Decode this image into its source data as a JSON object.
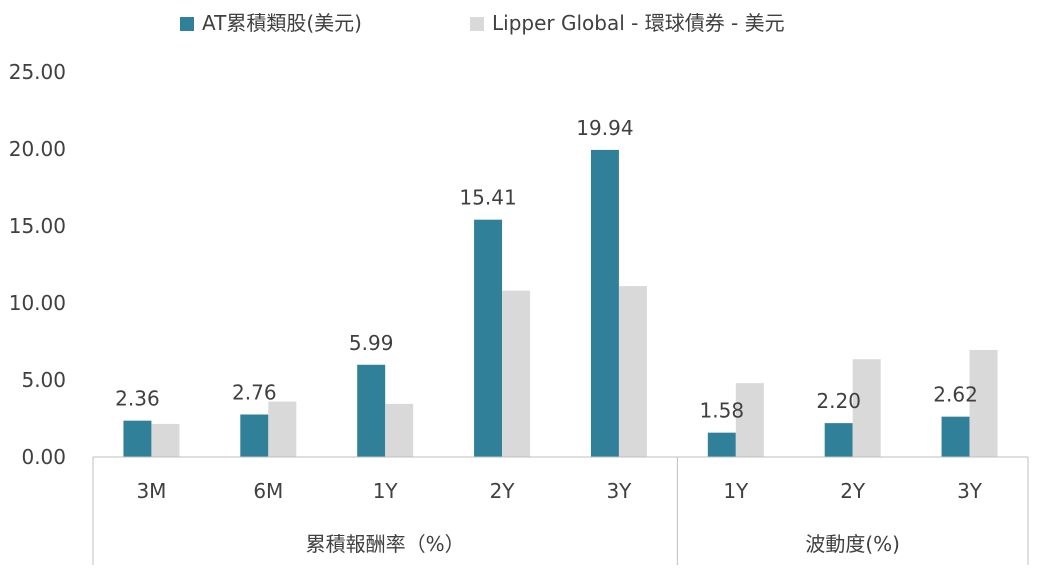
{
  "chart_data": {
    "type": "bar",
    "legend_position": "top",
    "grid": false,
    "ylim": [
      0,
      25
    ],
    "y_ticks": [
      "0.00",
      "5.00",
      "10.00",
      "15.00",
      "20.00",
      "25.00"
    ],
    "categories": [
      "3M",
      "6M",
      "1Y",
      "2Y",
      "3Y",
      "1Y",
      "2Y",
      "3Y"
    ],
    "groups": [
      {
        "label": "累積報酬率（%）",
        "count": 5
      },
      {
        "label": "波動度(%)",
        "count": 3
      }
    ],
    "series": [
      {
        "name": "AT累積類股(美元)",
        "color": "#31809A",
        "values": [
          2.36,
          2.76,
          5.99,
          15.41,
          19.94,
          1.58,
          2.2,
          2.62
        ],
        "labels": [
          "2.36",
          "2.76",
          "5.99",
          "15.41",
          "19.94",
          "1.58",
          "2.20",
          "2.62"
        ]
      },
      {
        "name": "Lipper Global - 環球債券 - 美元",
        "color": "#D9D9D9",
        "values": [
          2.15,
          3.6,
          3.45,
          10.8,
          11.1,
          4.8,
          6.35,
          6.95
        ]
      }
    ],
    "colors": {
      "axis": "#BFBFBF",
      "text": "#404040"
    }
  }
}
